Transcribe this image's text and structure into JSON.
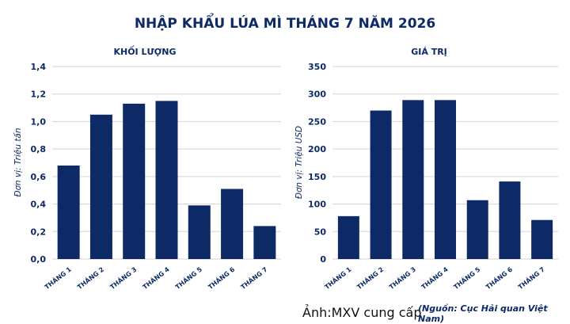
{
  "title": "NHẬP KHẨU LÚA MÌ THÁNG 7 NĂM 2026",
  "colors": {
    "bar": "#0d2a66",
    "text": "#0d2a66",
    "grid": "#d3d3d3"
  },
  "chart_data": [
    {
      "type": "bar",
      "title": "KHỐI LƯỢNG",
      "ylabel": "Đơn vị: Triệu tấn",
      "categories": [
        "THÁNG 1",
        "THÁNG 2",
        "THÁNG 3",
        "THÁNG 4",
        "THÁNG 5",
        "THÁNG 6",
        "THÁNG 7"
      ],
      "values": [
        0.68,
        1.05,
        1.13,
        1.15,
        0.39,
        0.51,
        0.24
      ],
      "ylim": [
        0,
        1.4
      ],
      "yticks": [
        "0,0",
        "0,2",
        "0,4",
        "0,6",
        "0,8",
        "1,0",
        "1,2",
        "1,4"
      ],
      "grid": true
    },
    {
      "type": "bar",
      "title": "GIÁ TRỊ",
      "ylabel": "Đơn vị: Triệu USD",
      "categories": [
        "THÁNG 1",
        "THÁNG 2",
        "THÁNG 3",
        "THÁNG 4",
        "THÁNG 5",
        "THÁNG 6",
        "THÁNG 7"
      ],
      "values": [
        78,
        270,
        289,
        289,
        107,
        141,
        71
      ],
      "ylim": [
        0,
        350
      ],
      "yticks": [
        "0",
        "50",
        "100",
        "150",
        "200",
        "250",
        "300",
        "350"
      ],
      "grid": true
    }
  ],
  "photo_credit": "Ảnh:MXV cung cấp",
  "source_note": "(Nguồn: Cục Hải quan Việt Nam)"
}
